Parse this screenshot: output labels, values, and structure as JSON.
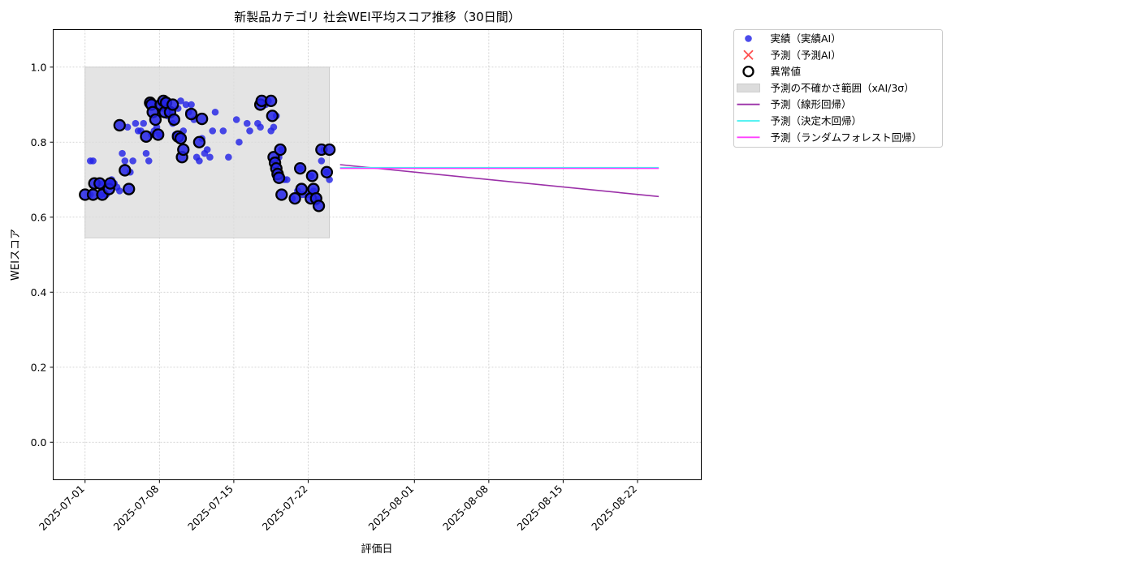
{
  "chart_data": {
    "type": "scatter",
    "title": "新製品カテゴリ 社会WEI平均スコア推移（30日間）",
    "xlabel": "評価日",
    "ylabel": "WEIスコア",
    "x_axis_type": "date",
    "xlim": [
      "2025-06-28",
      "2025-08-28"
    ],
    "ylim": [
      -0.1,
      1.1
    ],
    "xticks": [
      "2025-07-01",
      "2025-07-08",
      "2025-07-15",
      "2025-07-22",
      "2025-08-01",
      "2025-08-08",
      "2025-08-15",
      "2025-08-22"
    ],
    "yticks": [
      "0.0",
      "0.2",
      "0.4",
      "0.6",
      "0.8",
      "1.0"
    ],
    "grid": true,
    "legend_position": "outside top-right",
    "colors": {
      "actual": "#2323e6",
      "predicted_x": "#ff4d4d",
      "anomaly_ring": "#000000",
      "band": "#dcdcdc",
      "linear": "#9b30a8",
      "tree": "#40f0f0",
      "forest": "#ff40ff"
    },
    "uncertainty_band": {
      "x_start": "2025-07-01",
      "x_end": "2025-07-24",
      "y_low": 0.545,
      "y_high": 1.0
    },
    "legend": [
      {
        "label": "実績（実績AI）",
        "marker": "dot"
      },
      {
        "label": "予測（予測AI）",
        "marker": "x"
      },
      {
        "label": "異常値",
        "marker": "ring"
      },
      {
        "label": "予測の不確かさ範囲（xAI/3σ）",
        "marker": "band"
      },
      {
        "label": "予測（線形回帰）",
        "marker": "line-linear"
      },
      {
        "label": "予測（決定木回帰）",
        "marker": "line-tree"
      },
      {
        "label": "予測（ランダムフォレスト回帰）",
        "marker": "line-forest"
      }
    ],
    "series": [
      {
        "name": "実績（実績AI）",
        "points": [
          [
            "2025-07-01 12:00",
            0.75
          ],
          [
            "2025-07-01 18:00",
            0.75
          ],
          [
            "2025-07-01 12:00",
            0.66
          ],
          [
            "2025-07-02 06:00",
            0.69
          ],
          [
            "2025-07-02 12:00",
            0.66
          ],
          [
            "2025-07-02 18:00",
            0.69
          ],
          [
            "2025-07-03 00:00",
            0.66
          ],
          [
            "2025-07-03 06:00",
            0.69
          ],
          [
            "2025-07-03 12:00",
            0.7
          ],
          [
            "2025-07-03 18:00",
            0.69
          ],
          [
            "2025-07-04 00:00",
            0.68
          ],
          [
            "2025-07-04 06:00",
            0.67
          ],
          [
            "2025-07-04 12:00",
            0.77
          ],
          [
            "2025-07-04 18:00",
            0.75
          ],
          [
            "2025-07-05 00:00",
            0.84
          ],
          [
            "2025-07-05 06:00",
            0.72
          ],
          [
            "2025-07-05 12:00",
            0.75
          ],
          [
            "2025-07-05 18:00",
            0.85
          ],
          [
            "2025-07-06 00:00",
            0.83
          ],
          [
            "2025-07-06 06:00",
            0.83
          ],
          [
            "2025-07-06 12:00",
            0.85
          ],
          [
            "2025-07-06 18:00",
            0.77
          ],
          [
            "2025-07-07 00:00",
            0.75
          ],
          [
            "2025-07-07 06:00",
            0.82
          ],
          [
            "2025-07-07 12:00",
            0.83
          ],
          [
            "2025-07-07 18:00",
            0.84
          ],
          [
            "2025-07-08 00:00",
            0.82
          ],
          [
            "2025-07-08 06:00",
            0.89
          ],
          [
            "2025-07-08 12:00",
            0.9
          ],
          [
            "2025-07-08 18:00",
            0.87
          ],
          [
            "2025-07-09 00:00",
            0.88
          ],
          [
            "2025-07-09 06:00",
            0.85
          ],
          [
            "2025-07-09 12:00",
            0.82
          ],
          [
            "2025-07-09 18:00",
            0.89
          ],
          [
            "2025-07-10 00:00",
            0.91
          ],
          [
            "2025-07-10 06:00",
            0.83
          ],
          [
            "2025-07-10 12:00",
            0.9
          ],
          [
            "2025-07-10 18:00",
            0.88
          ],
          [
            "2025-07-11 00:00",
            0.9
          ],
          [
            "2025-07-11 06:00",
            0.86
          ],
          [
            "2025-07-11 12:00",
            0.76
          ],
          [
            "2025-07-11 18:00",
            0.75
          ],
          [
            "2025-07-12 00:00",
            0.81
          ],
          [
            "2025-07-12 06:00",
            0.77
          ],
          [
            "2025-07-12 12:00",
            0.78
          ],
          [
            "2025-07-12 18:00",
            0.76
          ],
          [
            "2025-07-13 00:00",
            0.83
          ],
          [
            "2025-07-13 06:00",
            0.88
          ],
          [
            "2025-07-14 00:00",
            0.83
          ],
          [
            "2025-07-14 12:00",
            0.76
          ],
          [
            "2025-07-15 06:00",
            0.86
          ],
          [
            "2025-07-15 12:00",
            0.8
          ],
          [
            "2025-07-16 06:00",
            0.85
          ],
          [
            "2025-07-16 12:00",
            0.83
          ],
          [
            "2025-07-17 06:00",
            0.85
          ],
          [
            "2025-07-17 12:00",
            0.84
          ],
          [
            "2025-07-18 00:00",
            0.9
          ],
          [
            "2025-07-18 06:00",
            0.91
          ],
          [
            "2025-07-18 12:00",
            0.83
          ],
          [
            "2025-07-18 18:00",
            0.84
          ],
          [
            "2025-07-19 00:00",
            0.87
          ],
          [
            "2025-07-19 06:00",
            0.76
          ],
          [
            "2025-07-19 12:00",
            0.78
          ],
          [
            "2025-07-19 18:00",
            0.7
          ],
          [
            "2025-07-20 00:00",
            0.7
          ],
          [
            "2025-07-20 12:00",
            0.65
          ],
          [
            "2025-07-21 00:00",
            0.67
          ],
          [
            "2025-07-21 06:00",
            0.73
          ],
          [
            "2025-07-21 12:00",
            0.66
          ],
          [
            "2025-07-22 00:00",
            0.66
          ],
          [
            "2025-07-22 06:00",
            0.71
          ],
          [
            "2025-07-22 12:00",
            0.67
          ],
          [
            "2025-07-22 18:00",
            0.64
          ],
          [
            "2025-07-23 00:00",
            0.65
          ],
          [
            "2025-07-23 06:00",
            0.75
          ],
          [
            "2025-07-23 12:00",
            0.78
          ],
          [
            "2025-07-23 18:00",
            0.72
          ],
          [
            "2025-07-24 00:00",
            0.7
          ]
        ]
      },
      {
        "name": "異常値",
        "points": [
          [
            "2025-07-01 00:00",
            0.66
          ],
          [
            "2025-07-01 18:00",
            0.66
          ],
          [
            "2025-07-01 21:00",
            0.69
          ],
          [
            "2025-07-02 09:00",
            0.69
          ],
          [
            "2025-07-02 15:00",
            0.66
          ],
          [
            "2025-07-03 06:00",
            0.675
          ],
          [
            "2025-07-03 09:00",
            0.69
          ],
          [
            "2025-07-04 06:00",
            0.845
          ],
          [
            "2025-07-04 18:00",
            0.725
          ],
          [
            "2025-07-05 03:00",
            0.675
          ],
          [
            "2025-07-06 18:00",
            0.815
          ],
          [
            "2025-07-07 03:00",
            0.905
          ],
          [
            "2025-07-07 06:00",
            0.9
          ],
          [
            "2025-07-07 09:00",
            0.88
          ],
          [
            "2025-07-07 15:00",
            0.86
          ],
          [
            "2025-07-07 21:00",
            0.82
          ],
          [
            "2025-07-08 03:00",
            0.9
          ],
          [
            "2025-07-08 09:00",
            0.91
          ],
          [
            "2025-07-08 12:00",
            0.88
          ],
          [
            "2025-07-08 15:00",
            0.905
          ],
          [
            "2025-07-09 00:00",
            0.88
          ],
          [
            "2025-07-09 06:00",
            0.9
          ],
          [
            "2025-07-09 09:00",
            0.86
          ],
          [
            "2025-07-09 18:00",
            0.815
          ],
          [
            "2025-07-10 00:00",
            0.81
          ],
          [
            "2025-07-10 03:00",
            0.76
          ],
          [
            "2025-07-10 06:00",
            0.78
          ],
          [
            "2025-07-11 00:00",
            0.875
          ],
          [
            "2025-07-11 18:00",
            0.8
          ],
          [
            "2025-07-12 00:00",
            0.862
          ],
          [
            "2025-07-17 12:00",
            0.9
          ],
          [
            "2025-07-17 15:00",
            0.91
          ],
          [
            "2025-07-18 12:00",
            0.91
          ],
          [
            "2025-07-18 15:00",
            0.87
          ],
          [
            "2025-07-18 18:00",
            0.76
          ],
          [
            "2025-07-18 21:00",
            0.745
          ],
          [
            "2025-07-19 00:00",
            0.73
          ],
          [
            "2025-07-19 03:00",
            0.715
          ],
          [
            "2025-07-19 06:00",
            0.705
          ],
          [
            "2025-07-19 09:00",
            0.78
          ],
          [
            "2025-07-19 12:00",
            0.66
          ],
          [
            "2025-07-20 18:00",
            0.65
          ],
          [
            "2025-07-21 06:00",
            0.73
          ],
          [
            "2025-07-21 09:00",
            0.675
          ],
          [
            "2025-07-22 06:00",
            0.65
          ],
          [
            "2025-07-22 09:00",
            0.71
          ],
          [
            "2025-07-22 12:00",
            0.675
          ],
          [
            "2025-07-22 18:00",
            0.65
          ],
          [
            "2025-07-23 00:00",
            0.63
          ],
          [
            "2025-07-23 06:00",
            0.78
          ],
          [
            "2025-07-23 18:00",
            0.72
          ],
          [
            "2025-07-24 00:00",
            0.78
          ]
        ]
      },
      {
        "name": "予測（線形回帰）",
        "points": [
          [
            "2025-07-25",
            0.74
          ],
          [
            "2025-08-24",
            0.655
          ]
        ]
      },
      {
        "name": "予測（決定木回帰）",
        "points": [
          [
            "2025-07-25",
            0.732
          ],
          [
            "2025-08-24",
            0.732
          ]
        ]
      },
      {
        "name": "予測（ランダムフォレスト回帰）",
        "points": [
          [
            "2025-07-25",
            0.73
          ],
          [
            "2025-08-24",
            0.73
          ]
        ]
      }
    ]
  }
}
